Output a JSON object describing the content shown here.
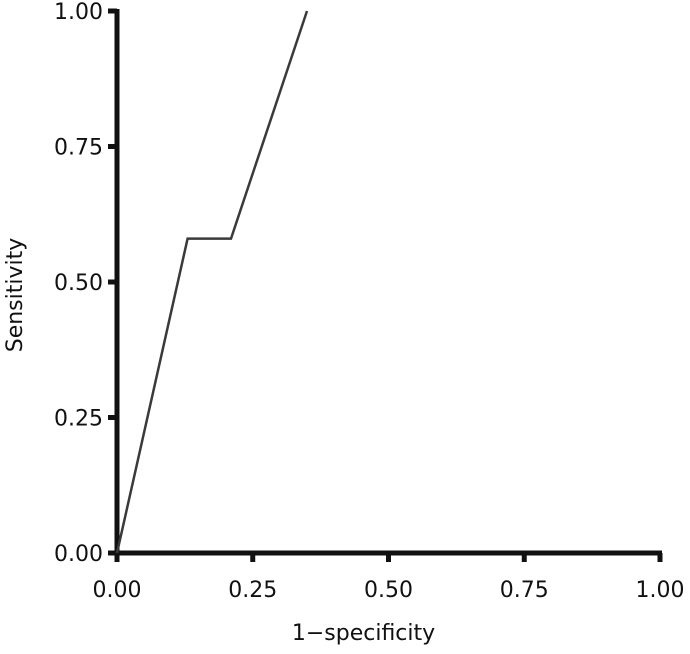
{
  "chart_data": {
    "type": "line",
    "title": "",
    "xlabel": "1−specificity",
    "ylabel": "Sensitivity",
    "xlim": [
      0,
      1
    ],
    "ylim": [
      0,
      1
    ],
    "x_ticks": [
      "0.00",
      "0.25",
      "0.50",
      "0.75",
      "1.00"
    ],
    "y_ticks": [
      "0.00",
      "0.25",
      "0.50",
      "0.75",
      "1.00"
    ],
    "grid": false,
    "series": [
      {
        "x": [
          0.0,
          0.13,
          0.21,
          0.35
        ],
        "y": [
          0.0,
          0.58,
          0.58,
          1.0
        ]
      }
    ],
    "colors": {
      "line": "#3a3a3a",
      "axis": "#111111"
    }
  }
}
